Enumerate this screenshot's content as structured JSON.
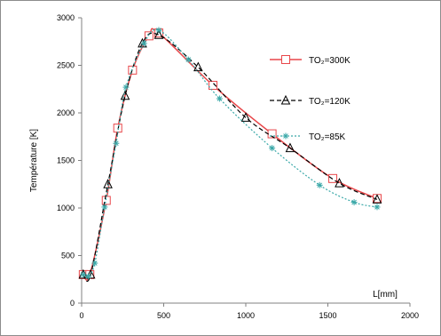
{
  "chart_data": {
    "type": "line",
    "xlabel": "L[mm]",
    "ylabel": "Température [K]",
    "xlim": [
      0,
      2000
    ],
    "ylim": [
      0,
      3000
    ],
    "xticks": [
      0,
      500,
      1000,
      1500,
      2000
    ],
    "yticks": [
      0,
      500,
      1000,
      1500,
      2000,
      2500,
      3000
    ],
    "grid": false,
    "legend_position": "top-right",
    "series": [
      {
        "name": "TO₂=300K",
        "color": "#e8474a",
        "marker": "square",
        "line_style": "solid",
        "x": [
          10,
          50,
          150,
          220,
          310,
          410,
          470,
          800,
          1160,
          1530,
          1800
        ],
        "y": [
          300,
          300,
          1080,
          1840,
          2450,
          2810,
          2840,
          2290,
          1780,
          1310,
          1100
        ]
      },
      {
        "name": "TO₂=120K",
        "color": "#000000",
        "marker": "triangle",
        "line_style": "dashed",
        "x": [
          10,
          55,
          160,
          265,
          370,
          470,
          710,
          1000,
          1270,
          1570,
          1800
        ],
        "y": [
          300,
          300,
          1250,
          2180,
          2730,
          2820,
          2480,
          1950,
          1630,
          1260,
          1090
        ]
      },
      {
        "name": "TO₂=85K",
        "color": "#3aa8a8",
        "marker": "asterisk",
        "line_style": "dotted",
        "x": [
          10,
          40,
          80,
          140,
          210,
          270,
          380,
          470,
          650,
          840,
          1160,
          1450,
          1660,
          1800
        ],
        "y": [
          300,
          280,
          420,
          1010,
          1680,
          2270,
          2730,
          2870,
          2560,
          2150,
          1630,
          1240,
          1060,
          1010
        ]
      }
    ]
  }
}
